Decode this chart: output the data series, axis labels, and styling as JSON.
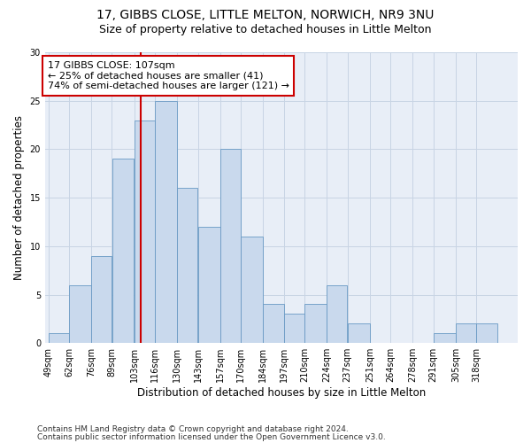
{
  "title_line1": "17, GIBBS CLOSE, LITTLE MELTON, NORWICH, NR9 3NU",
  "title_line2": "Size of property relative to detached houses in Little Melton",
  "xlabel": "Distribution of detached houses by size in Little Melton",
  "ylabel": "Number of detached properties",
  "bin_labels": [
    "49sqm",
    "62sqm",
    "76sqm",
    "89sqm",
    "103sqm",
    "116sqm",
    "130sqm",
    "143sqm",
    "157sqm",
    "170sqm",
    "184sqm",
    "197sqm",
    "210sqm",
    "224sqm",
    "237sqm",
    "251sqm",
    "264sqm",
    "278sqm",
    "291sqm",
    "305sqm",
    "318sqm"
  ],
  "bin_edges": [
    49,
    62,
    76,
    89,
    103,
    116,
    130,
    143,
    157,
    170,
    184,
    197,
    210,
    224,
    237,
    251,
    264,
    278,
    291,
    305,
    318,
    331
  ],
  "counts": [
    1,
    6,
    9,
    19,
    23,
    25,
    16,
    12,
    20,
    11,
    4,
    3,
    4,
    6,
    2,
    0,
    0,
    0,
    1,
    2,
    2
  ],
  "bar_color": "#c9d9ed",
  "bar_edge_color": "#6899c4",
  "vline_x": 107,
  "vline_color": "#cc0000",
  "annotation_text": "17 GIBBS CLOSE: 107sqm\n← 25% of detached houses are smaller (41)\n74% of semi-detached houses are larger (121) →",
  "annotation_box_color": "#ffffff",
  "annotation_box_edge": "#cc0000",
  "ylim": [
    0,
    30
  ],
  "yticks": [
    0,
    5,
    10,
    15,
    20,
    25,
    30
  ],
  "background_color": "#ffffff",
  "grid_color": "#c8d4e4",
  "footer_line1": "Contains HM Land Registry data © Crown copyright and database right 2024.",
  "footer_line2": "Contains public sector information licensed under the Open Government Licence v3.0.",
  "title_fontsize": 10,
  "subtitle_fontsize": 9,
  "axis_label_fontsize": 8.5,
  "tick_fontsize": 7,
  "annotation_fontsize": 8,
  "footer_fontsize": 6.5
}
